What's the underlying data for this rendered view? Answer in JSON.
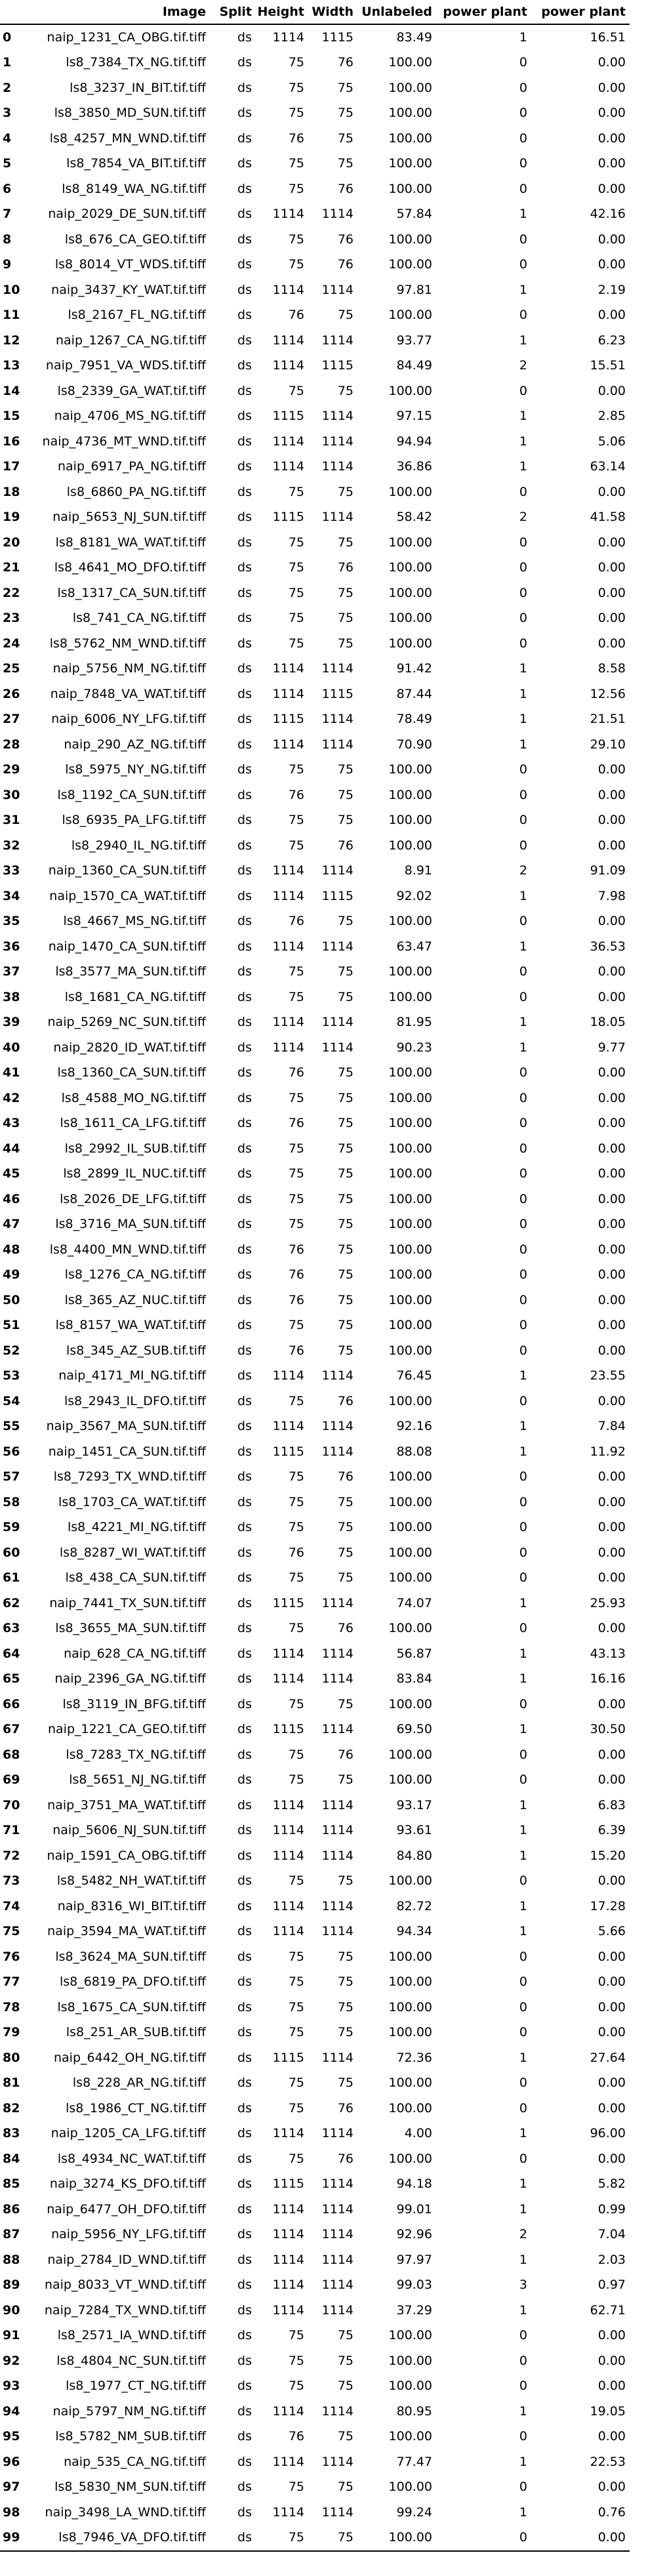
{
  "table": {
    "columns": [
      "",
      "Image",
      "Split",
      "Height",
      "Width",
      "Unlabeled",
      "power plant",
      "power plant"
    ],
    "rows": [
      [
        "0",
        "naip_1231_CA_OBG.tif.tiff",
        "ds",
        "1114",
        "1115",
        "83.49",
        "1",
        "16.51"
      ],
      [
        "1",
        "ls8_7384_TX_NG.tif.tiff",
        "ds",
        "75",
        "76",
        "100.00",
        "0",
        "0.00"
      ],
      [
        "2",
        "ls8_3237_IN_BIT.tif.tiff",
        "ds",
        "75",
        "75",
        "100.00",
        "0",
        "0.00"
      ],
      [
        "3",
        "ls8_3850_MD_SUN.tif.tiff",
        "ds",
        "75",
        "75",
        "100.00",
        "0",
        "0.00"
      ],
      [
        "4",
        "ls8_4257_MN_WND.tif.tiff",
        "ds",
        "76",
        "75",
        "100.00",
        "0",
        "0.00"
      ],
      [
        "5",
        "ls8_7854_VA_BIT.tif.tiff",
        "ds",
        "75",
        "75",
        "100.00",
        "0",
        "0.00"
      ],
      [
        "6",
        "ls8_8149_WA_NG.tif.tiff",
        "ds",
        "75",
        "76",
        "100.00",
        "0",
        "0.00"
      ],
      [
        "7",
        "naip_2029_DE_SUN.tif.tiff",
        "ds",
        "1114",
        "1114",
        "57.84",
        "1",
        "42.16"
      ],
      [
        "8",
        "ls8_676_CA_GEO.tif.tiff",
        "ds",
        "75",
        "76",
        "100.00",
        "0",
        "0.00"
      ],
      [
        "9",
        "ls8_8014_VT_WDS.tif.tiff",
        "ds",
        "75",
        "76",
        "100.00",
        "0",
        "0.00"
      ],
      [
        "10",
        "naip_3437_KY_WAT.tif.tiff",
        "ds",
        "1114",
        "1114",
        "97.81",
        "1",
        "2.19"
      ],
      [
        "11",
        "ls8_2167_FL_NG.tif.tiff",
        "ds",
        "76",
        "75",
        "100.00",
        "0",
        "0.00"
      ],
      [
        "12",
        "naip_1267_CA_NG.tif.tiff",
        "ds",
        "1114",
        "1114",
        "93.77",
        "1",
        "6.23"
      ],
      [
        "13",
        "naip_7951_VA_WDS.tif.tiff",
        "ds",
        "1114",
        "1115",
        "84.49",
        "2",
        "15.51"
      ],
      [
        "14",
        "ls8_2339_GA_WAT.tif.tiff",
        "ds",
        "75",
        "75",
        "100.00",
        "0",
        "0.00"
      ],
      [
        "15",
        "naip_4706_MS_NG.tif.tiff",
        "ds",
        "1115",
        "1114",
        "97.15",
        "1",
        "2.85"
      ],
      [
        "16",
        "naip_4736_MT_WND.tif.tiff",
        "ds",
        "1114",
        "1114",
        "94.94",
        "1",
        "5.06"
      ],
      [
        "17",
        "naip_6917_PA_NG.tif.tiff",
        "ds",
        "1114",
        "1114",
        "36.86",
        "1",
        "63.14"
      ],
      [
        "18",
        "ls8_6860_PA_NG.tif.tiff",
        "ds",
        "75",
        "75",
        "100.00",
        "0",
        "0.00"
      ],
      [
        "19",
        "naip_5653_NJ_SUN.tif.tiff",
        "ds",
        "1115",
        "1114",
        "58.42",
        "2",
        "41.58"
      ],
      [
        "20",
        "ls8_8181_WA_WAT.tif.tiff",
        "ds",
        "75",
        "75",
        "100.00",
        "0",
        "0.00"
      ],
      [
        "21",
        "ls8_4641_MO_DFO.tif.tiff",
        "ds",
        "75",
        "76",
        "100.00",
        "0",
        "0.00"
      ],
      [
        "22",
        "ls8_1317_CA_SUN.tif.tiff",
        "ds",
        "75",
        "75",
        "100.00",
        "0",
        "0.00"
      ],
      [
        "23",
        "ls8_741_CA_NG.tif.tiff",
        "ds",
        "75",
        "75",
        "100.00",
        "0",
        "0.00"
      ],
      [
        "24",
        "ls8_5762_NM_WND.tif.tiff",
        "ds",
        "75",
        "75",
        "100.00",
        "0",
        "0.00"
      ],
      [
        "25",
        "naip_5756_NM_NG.tif.tiff",
        "ds",
        "1114",
        "1114",
        "91.42",
        "1",
        "8.58"
      ],
      [
        "26",
        "naip_7848_VA_WAT.tif.tiff",
        "ds",
        "1114",
        "1115",
        "87.44",
        "1",
        "12.56"
      ],
      [
        "27",
        "naip_6006_NY_LFG.tif.tiff",
        "ds",
        "1115",
        "1114",
        "78.49",
        "1",
        "21.51"
      ],
      [
        "28",
        "naip_290_AZ_NG.tif.tiff",
        "ds",
        "1114",
        "1114",
        "70.90",
        "1",
        "29.10"
      ],
      [
        "29",
        "ls8_5975_NY_NG.tif.tiff",
        "ds",
        "75",
        "75",
        "100.00",
        "0",
        "0.00"
      ],
      [
        "30",
        "ls8_1192_CA_SUN.tif.tiff",
        "ds",
        "76",
        "75",
        "100.00",
        "0",
        "0.00"
      ],
      [
        "31",
        "ls8_6935_PA_LFG.tif.tiff",
        "ds",
        "75",
        "75",
        "100.00",
        "0",
        "0.00"
      ],
      [
        "32",
        "ls8_2940_IL_NG.tif.tiff",
        "ds",
        "75",
        "76",
        "100.00",
        "0",
        "0.00"
      ],
      [
        "33",
        "naip_1360_CA_SUN.tif.tiff",
        "ds",
        "1114",
        "1114",
        "8.91",
        "2",
        "91.09"
      ],
      [
        "34",
        "naip_1570_CA_WAT.tif.tiff",
        "ds",
        "1114",
        "1115",
        "92.02",
        "1",
        "7.98"
      ],
      [
        "35",
        "ls8_4667_MS_NG.tif.tiff",
        "ds",
        "76",
        "75",
        "100.00",
        "0",
        "0.00"
      ],
      [
        "36",
        "naip_1470_CA_SUN.tif.tiff",
        "ds",
        "1114",
        "1114",
        "63.47",
        "1",
        "36.53"
      ],
      [
        "37",
        "ls8_3577_MA_SUN.tif.tiff",
        "ds",
        "75",
        "75",
        "100.00",
        "0",
        "0.00"
      ],
      [
        "38",
        "ls8_1681_CA_NG.tif.tiff",
        "ds",
        "75",
        "75",
        "100.00",
        "0",
        "0.00"
      ],
      [
        "39",
        "naip_5269_NC_SUN.tif.tiff",
        "ds",
        "1114",
        "1114",
        "81.95",
        "1",
        "18.05"
      ],
      [
        "40",
        "naip_2820_ID_WAT.tif.tiff",
        "ds",
        "1114",
        "1114",
        "90.23",
        "1",
        "9.77"
      ],
      [
        "41",
        "ls8_1360_CA_SUN.tif.tiff",
        "ds",
        "76",
        "75",
        "100.00",
        "0",
        "0.00"
      ],
      [
        "42",
        "ls8_4588_MO_NG.tif.tiff",
        "ds",
        "75",
        "75",
        "100.00",
        "0",
        "0.00"
      ],
      [
        "43",
        "ls8_1611_CA_LFG.tif.tiff",
        "ds",
        "76",
        "75",
        "100.00",
        "0",
        "0.00"
      ],
      [
        "44",
        "ls8_2992_IL_SUB.tif.tiff",
        "ds",
        "75",
        "75",
        "100.00",
        "0",
        "0.00"
      ],
      [
        "45",
        "ls8_2899_IL_NUC.tif.tiff",
        "ds",
        "75",
        "75",
        "100.00",
        "0",
        "0.00"
      ],
      [
        "46",
        "ls8_2026_DE_LFG.tif.tiff",
        "ds",
        "75",
        "75",
        "100.00",
        "0",
        "0.00"
      ],
      [
        "47",
        "ls8_3716_MA_SUN.tif.tiff",
        "ds",
        "75",
        "75",
        "100.00",
        "0",
        "0.00"
      ],
      [
        "48",
        "ls8_4400_MN_WND.tif.tiff",
        "ds",
        "76",
        "75",
        "100.00",
        "0",
        "0.00"
      ],
      [
        "49",
        "ls8_1276_CA_NG.tif.tiff",
        "ds",
        "76",
        "75",
        "100.00",
        "0",
        "0.00"
      ],
      [
        "50",
        "ls8_365_AZ_NUC.tif.tiff",
        "ds",
        "76",
        "75",
        "100.00",
        "0",
        "0.00"
      ],
      [
        "51",
        "ls8_8157_WA_WAT.tif.tiff",
        "ds",
        "75",
        "75",
        "100.00",
        "0",
        "0.00"
      ],
      [
        "52",
        "ls8_345_AZ_SUB.tif.tiff",
        "ds",
        "76",
        "75",
        "100.00",
        "0",
        "0.00"
      ],
      [
        "53",
        "naip_4171_MI_NG.tif.tiff",
        "ds",
        "1114",
        "1114",
        "76.45",
        "1",
        "23.55"
      ],
      [
        "54",
        "ls8_2943_IL_DFO.tif.tiff",
        "ds",
        "75",
        "76",
        "100.00",
        "0",
        "0.00"
      ],
      [
        "55",
        "naip_3567_MA_SUN.tif.tiff",
        "ds",
        "1114",
        "1114",
        "92.16",
        "1",
        "7.84"
      ],
      [
        "56",
        "naip_1451_CA_SUN.tif.tiff",
        "ds",
        "1115",
        "1114",
        "88.08",
        "1",
        "11.92"
      ],
      [
        "57",
        "ls8_7293_TX_WND.tif.tiff",
        "ds",
        "75",
        "76",
        "100.00",
        "0",
        "0.00"
      ],
      [
        "58",
        "ls8_1703_CA_WAT.tif.tiff",
        "ds",
        "75",
        "75",
        "100.00",
        "0",
        "0.00"
      ],
      [
        "59",
        "ls8_4221_MI_NG.tif.tiff",
        "ds",
        "75",
        "75",
        "100.00",
        "0",
        "0.00"
      ],
      [
        "60",
        "ls8_8287_WI_WAT.tif.tiff",
        "ds",
        "76",
        "75",
        "100.00",
        "0",
        "0.00"
      ],
      [
        "61",
        "ls8_438_CA_SUN.tif.tiff",
        "ds",
        "75",
        "75",
        "100.00",
        "0",
        "0.00"
      ],
      [
        "62",
        "naip_7441_TX_SUN.tif.tiff",
        "ds",
        "1115",
        "1114",
        "74.07",
        "1",
        "25.93"
      ],
      [
        "63",
        "ls8_3655_MA_SUN.tif.tiff",
        "ds",
        "75",
        "76",
        "100.00",
        "0",
        "0.00"
      ],
      [
        "64",
        "naip_628_CA_NG.tif.tiff",
        "ds",
        "1114",
        "1114",
        "56.87",
        "1",
        "43.13"
      ],
      [
        "65",
        "naip_2396_GA_NG.tif.tiff",
        "ds",
        "1114",
        "1114",
        "83.84",
        "1",
        "16.16"
      ],
      [
        "66",
        "ls8_3119_IN_BFG.tif.tiff",
        "ds",
        "75",
        "75",
        "100.00",
        "0",
        "0.00"
      ],
      [
        "67",
        "naip_1221_CA_GEO.tif.tiff",
        "ds",
        "1115",
        "1114",
        "69.50",
        "1",
        "30.50"
      ],
      [
        "68",
        "ls8_7283_TX_NG.tif.tiff",
        "ds",
        "75",
        "76",
        "100.00",
        "0",
        "0.00"
      ],
      [
        "69",
        "ls8_5651_NJ_NG.tif.tiff",
        "ds",
        "75",
        "75",
        "100.00",
        "0",
        "0.00"
      ],
      [
        "70",
        "naip_3751_MA_WAT.tif.tiff",
        "ds",
        "1114",
        "1114",
        "93.17",
        "1",
        "6.83"
      ],
      [
        "71",
        "naip_5606_NJ_SUN.tif.tiff",
        "ds",
        "1114",
        "1114",
        "93.61",
        "1",
        "6.39"
      ],
      [
        "72",
        "naip_1591_CA_OBG.tif.tiff",
        "ds",
        "1114",
        "1114",
        "84.80",
        "1",
        "15.20"
      ],
      [
        "73",
        "ls8_5482_NH_WAT.tif.tiff",
        "ds",
        "75",
        "75",
        "100.00",
        "0",
        "0.00"
      ],
      [
        "74",
        "naip_8316_WI_BIT.tif.tiff",
        "ds",
        "1114",
        "1114",
        "82.72",
        "1",
        "17.28"
      ],
      [
        "75",
        "naip_3594_MA_WAT.tif.tiff",
        "ds",
        "1114",
        "1114",
        "94.34",
        "1",
        "5.66"
      ],
      [
        "76",
        "ls8_3624_MA_SUN.tif.tiff",
        "ds",
        "75",
        "75",
        "100.00",
        "0",
        "0.00"
      ],
      [
        "77",
        "ls8_6819_PA_DFO.tif.tiff",
        "ds",
        "75",
        "75",
        "100.00",
        "0",
        "0.00"
      ],
      [
        "78",
        "ls8_1675_CA_SUN.tif.tiff",
        "ds",
        "75",
        "75",
        "100.00",
        "0",
        "0.00"
      ],
      [
        "79",
        "ls8_251_AR_SUB.tif.tiff",
        "ds",
        "75",
        "75",
        "100.00",
        "0",
        "0.00"
      ],
      [
        "80",
        "naip_6442_OH_NG.tif.tiff",
        "ds",
        "1115",
        "1114",
        "72.36",
        "1",
        "27.64"
      ],
      [
        "81",
        "ls8_228_AR_NG.tif.tiff",
        "ds",
        "75",
        "75",
        "100.00",
        "0",
        "0.00"
      ],
      [
        "82",
        "ls8_1986_CT_NG.tif.tiff",
        "ds",
        "75",
        "76",
        "100.00",
        "0",
        "0.00"
      ],
      [
        "83",
        "naip_1205_CA_LFG.tif.tiff",
        "ds",
        "1114",
        "1114",
        "4.00",
        "1",
        "96.00"
      ],
      [
        "84",
        "ls8_4934_NC_WAT.tif.tiff",
        "ds",
        "75",
        "76",
        "100.00",
        "0",
        "0.00"
      ],
      [
        "85",
        "naip_3274_KS_DFO.tif.tiff",
        "ds",
        "1115",
        "1114",
        "94.18",
        "1",
        "5.82"
      ],
      [
        "86",
        "naip_6477_OH_DFO.tif.tiff",
        "ds",
        "1114",
        "1114",
        "99.01",
        "1",
        "0.99"
      ],
      [
        "87",
        "naip_5956_NY_LFG.tif.tiff",
        "ds",
        "1114",
        "1114",
        "92.96",
        "2",
        "7.04"
      ],
      [
        "88",
        "naip_2784_ID_WND.tif.tiff",
        "ds",
        "1114",
        "1114",
        "97.97",
        "1",
        "2.03"
      ],
      [
        "89",
        "naip_8033_VT_WND.tif.tiff",
        "ds",
        "1114",
        "1114",
        "99.03",
        "3",
        "0.97"
      ],
      [
        "90",
        "naip_7284_TX_WND.tif.tiff",
        "ds",
        "1114",
        "1114",
        "37.29",
        "1",
        "62.71"
      ],
      [
        "91",
        "ls8_2571_IA_WND.tif.tiff",
        "ds",
        "75",
        "75",
        "100.00",
        "0",
        "0.00"
      ],
      [
        "92",
        "ls8_4804_NC_SUN.tif.tiff",
        "ds",
        "75",
        "75",
        "100.00",
        "0",
        "0.00"
      ],
      [
        "93",
        "ls8_1977_CT_NG.tif.tiff",
        "ds",
        "75",
        "75",
        "100.00",
        "0",
        "0.00"
      ],
      [
        "94",
        "naip_5797_NM_NG.tif.tiff",
        "ds",
        "1114",
        "1114",
        "80.95",
        "1",
        "19.05"
      ],
      [
        "95",
        "ls8_5782_NM_SUB.tif.tiff",
        "ds",
        "76",
        "75",
        "100.00",
        "0",
        "0.00"
      ],
      [
        "96",
        "naip_535_CA_NG.tif.tiff",
        "ds",
        "1114",
        "1114",
        "77.47",
        "1",
        "22.53"
      ],
      [
        "97",
        "ls8_5830_NM_SUN.tif.tiff",
        "ds",
        "75",
        "75",
        "100.00",
        "0",
        "0.00"
      ],
      [
        "98",
        "naip_3498_LA_WND.tif.tiff",
        "ds",
        "1114",
        "1114",
        "99.24",
        "1",
        "0.76"
      ],
      [
        "99",
        "ls8_7946_VA_DFO.tif.tiff",
        "ds",
        "75",
        "75",
        "100.00",
        "0",
        "0.00"
      ]
    ]
  }
}
